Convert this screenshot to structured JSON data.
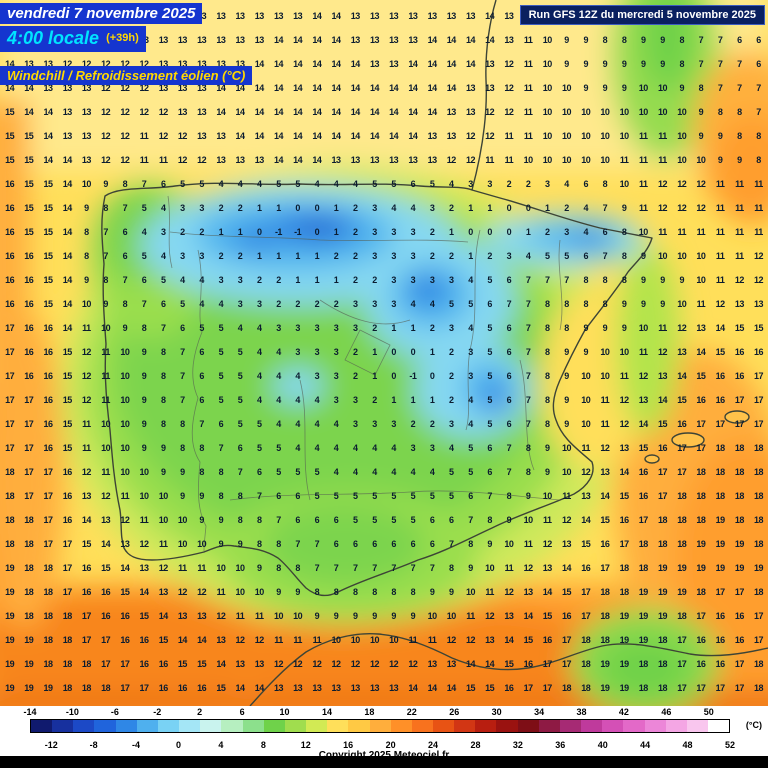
{
  "header": {
    "date": "vendredi 7 novembre 2025",
    "time": "4:00 locale",
    "offset": "(+39h)",
    "param": "Windchill / Refroidissement éolien (°C)",
    "run": "Run GFS 12Z du mercredi 5 novembre 2025"
  },
  "footer": {
    "copyright": "Copyright 2025 Meteociel.fr"
  },
  "colorbar": {
    "unit": "(°C)",
    "min": -14,
    "max": 52,
    "step": 2,
    "top_labels": [
      -14,
      -10,
      -6,
      -2,
      2,
      6,
      10,
      14,
      18,
      22,
      26,
      30,
      34,
      38,
      42,
      46,
      50
    ],
    "bottom_labels": [
      -12,
      -8,
      -4,
      0,
      4,
      8,
      12,
      16,
      20,
      24,
      28,
      32,
      36,
      40,
      44,
      48,
      52
    ],
    "colors": [
      "#101a6e",
      "#17309e",
      "#1c49c6",
      "#2064dc",
      "#2f87e6",
      "#4fb0ee",
      "#79d2f4",
      "#a4e6f6",
      "#c9f3ee",
      "#b6efc0",
      "#8ce08c",
      "#6fd24a",
      "#a0dd4e",
      "#d2ea54",
      "#ffdf5a",
      "#ffc944",
      "#ffae3c",
      "#ff9028",
      "#f8721e",
      "#e85314",
      "#d23614",
      "#b81e10",
      "#9a1210",
      "#7e0e16",
      "#8e1a44",
      "#a62a74",
      "#bf3a9c",
      "#d450b6",
      "#e369c8",
      "#ec86d8",
      "#f4a6e4",
      "#f9c6ee",
      "#ffffff"
    ]
  },
  "map": {
    "value_rows": [
      "13 13 13 12 13 13 13 13 13 13 13 13 13 13 13 13 14 14 13 13 13 13 13 13 13 14 13 12 11 10 9 9 8 8 9 8 7 7 6 6",
      "13 13 13 12 12 12 12 13 13 13 13 13 13 13 14 14 14 14 13 13 13 13 14 14 14 14 13 11 10 9 9 8 8 9 9 8 7 7 6 6",
      "14 13 13 12 12 12 12 12 13 13 13 13 13 14 14 14 14 14 14 13 13 14 14 14 14 13 12 11 10 9 9 9 9 9 9 8 7 7 7 6",
      "14 14 13 13 13 12 12 12 13 13 13 14 14 14 14 14 14 14 14 14 14 14 14 14 13 13 12 11 10 10 9 9 9 10 10 9 8 7 7 7",
      "15 14 14 13 13 12 12 12 12 13 13 14 14 14 14 14 14 14 14 14 14 14 14 13 13 12 12 11 10 10 10 10 10 10 10 10 9 8 8 7",
      "15 15 14 13 13 12 12 11 12 12 13 13 14 14 14 14 14 14 14 14 14 14 13 13 12 12 11 11 10 10 10 10 10 11 11 10 9 9 8 8",
      "15 15 14 14 13 12 12 11 11 12 12 13 13 13 14 14 14 13 13 13 13 13 13 12 12 11 11 10 10 10 10 10 11 11 11 10 10 9 9 8",
      "16 15 15 14 10 9 8 7 6 5 5 4 4 4 5 5 4 4 4 5 5 6 5 4 3 3 2 2 3 4 6 8 10 11 12 12 12 11 11 11",
      "16 15 15 14 9 8 7 5 4 3 3 2 2 1 1 0 0 1 2 3 4 4 3 2 1 1 0 0 1 2 4 7 9 11 12 12 12 11 11 11",
      "16 15 15 14 8 7 6 4 3 2 2 1 1 0 -1 -1 0 1 2 3 3 3 2 1 0 0 0 1 2 3 4 6 8 10 11 11 11 11 11 11",
      "16 16 15 14 8 7 6 5 4 3 3 2 2 1 1 1 1 2 2 3 3 3 2 2 1 2 3 4 5 5 6 7 8 9 10 10 10 11 11 12",
      "16 16 15 14 9 8 7 6 5 4 4 3 3 2 2 1 1 1 2 2 3 3 3 3 4 5 6 7 7 7 8 8 8 9 9 9 10 11 12 12",
      "16 16 15 14 10 9 8 7 6 5 4 4 3 3 2 2 2 2 3 3 3 4 4 5 5 6 7 7 8 8 8 8 9 9 9 10 11 12 13 13",
      "17 16 16 14 11 10 9 8 7 6 5 5 4 4 3 3 3 3 3 2 1 1 2 3 4 5 6 7 8 8 9 9 9 10 11 12 13 14 15 15",
      "17 16 16 15 12 11 10 9 8 7 6 5 5 4 4 3 3 3 2 1 0 0 1 2 3 5 6 7 8 9 9 10 10 11 12 13 14 15 16 16",
      "17 16 16 15 12 11 10 9 8 7 6 5 5 4 4 4 3 3 2 1 0 -1 0 2 3 5 6 7 8 9 10 10 11 12 13 14 15 16 16 17",
      "17 17 16 15 12 11 10 9 8 7 6 5 5 4 4 4 4 3 3 2 1 1 1 2 4 5 6 7 8 9 10 11 12 13 14 15 16 16 17 17",
      "17 17 16 15 11 10 10 9 8 8 7 6 5 5 4 4 4 4 3 3 3 2 2 3 4 5 6 7 8 9 10 11 12 14 15 16 17 17 17 17",
      "17 17 16 15 11 10 10 9 9 8 8 7 6 5 5 4 4 4 4 4 4 3 3 4 5 6 7 8 9 10 11 12 13 15 16 17 17 18 18 18",
      "18 17 17 16 12 11 10 10 9 9 8 8 7 6 5 5 5 4 4 4 4 4 4 5 5 6 7 8 9 10 12 13 14 16 17 17 18 18 18 18",
      "18 17 17 16 13 12 11 10 10 9 9 8 8 7 6 6 5 5 5 5 5 5 5 5 6 7 8 9 10 11 13 14 15 16 17 18 18 18 18 18",
      "18 18 17 16 14 13 12 11 10 10 9 9 8 8 7 6 6 6 5 5 5 5 6 6 7 8 9 10 11 12 14 15 16 17 18 18 18 19 18 18",
      "18 18 17 17 15 14 13 12 11 10 10 9 9 8 8 7 7 6 6 6 6 6 6 7 8 9 10 11 12 13 15 16 17 18 18 18 19 19 19 18",
      "19 18 18 17 16 15 14 13 12 11 11 10 10 9 8 8 7 7 7 7 7 7 7 8 9 10 11 12 13 14 16 17 18 18 19 19 19 19 19 19",
      "19 18 18 17 16 16 15 14 13 12 12 11 10 10 9 9 8 8 8 8 8 8 9 9 10 11 12 13 14 15 17 18 18 19 19 19 18 17 17 18",
      "19 18 18 18 17 16 16 15 14 13 13 12 11 11 10 10 9 9 9 9 9 9 10 10 11 12 13 14 15 16 17 18 19 19 19 18 17 16 16 17",
      "19 19 18 18 17 17 16 16 15 14 14 13 12 12 11 11 11 10 10 10 10 11 11 12 12 13 14 15 16 17 18 18 19 19 18 17 16 16 16 17",
      "19 19 18 18 18 17 17 16 16 15 15 14 13 13 12 12 12 12 12 12 12 12 13 13 14 14 15 16 17 17 18 19 19 18 18 17 16 16 17 18",
      "19 19 19 18 18 18 17 17 16 16 16 15 14 14 13 13 13 13 13 13 13 14 14 14 15 15 16 17 17 18 18 19 19 18 18 17 17 17 17 18"
    ]
  }
}
